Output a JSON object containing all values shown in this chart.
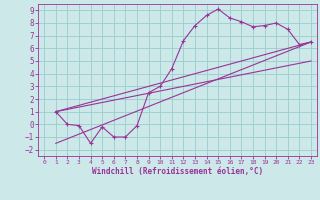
{
  "xlabel": "Windchill (Refroidissement éolien,°C)",
  "bg_color": "#cce8e8",
  "grid_color": "#99cccc",
  "line_color": "#993399",
  "xlim": [
    -0.5,
    23.5
  ],
  "ylim": [
    -2.5,
    9.5
  ],
  "xticks": [
    0,
    1,
    2,
    3,
    4,
    5,
    6,
    7,
    8,
    9,
    10,
    11,
    12,
    13,
    14,
    15,
    16,
    17,
    18,
    19,
    20,
    21,
    22,
    23
  ],
  "yticks": [
    -2,
    -1,
    0,
    1,
    2,
    3,
    4,
    5,
    6,
    7,
    8,
    9
  ],
  "curve1_x": [
    1,
    2,
    3,
    4,
    5,
    6,
    7,
    8,
    9,
    10,
    11,
    12,
    13,
    14,
    15,
    16,
    17,
    18,
    19,
    20,
    21,
    22,
    23
  ],
  "curve1_y": [
    1.0,
    0.0,
    -0.1,
    -1.5,
    -0.2,
    -1.0,
    -1.0,
    -0.1,
    2.5,
    3.0,
    4.4,
    6.6,
    7.8,
    8.6,
    9.1,
    8.4,
    8.1,
    7.7,
    7.8,
    8.0,
    7.5,
    6.3,
    6.5
  ],
  "line2_x": [
    1,
    23
  ],
  "line2_y": [
    1.0,
    6.5
  ],
  "line3_x": [
    1,
    23
  ],
  "line3_y": [
    -1.5,
    6.5
  ],
  "line4_x": [
    1,
    23
  ],
  "line4_y": [
    1.0,
    5.0
  ]
}
